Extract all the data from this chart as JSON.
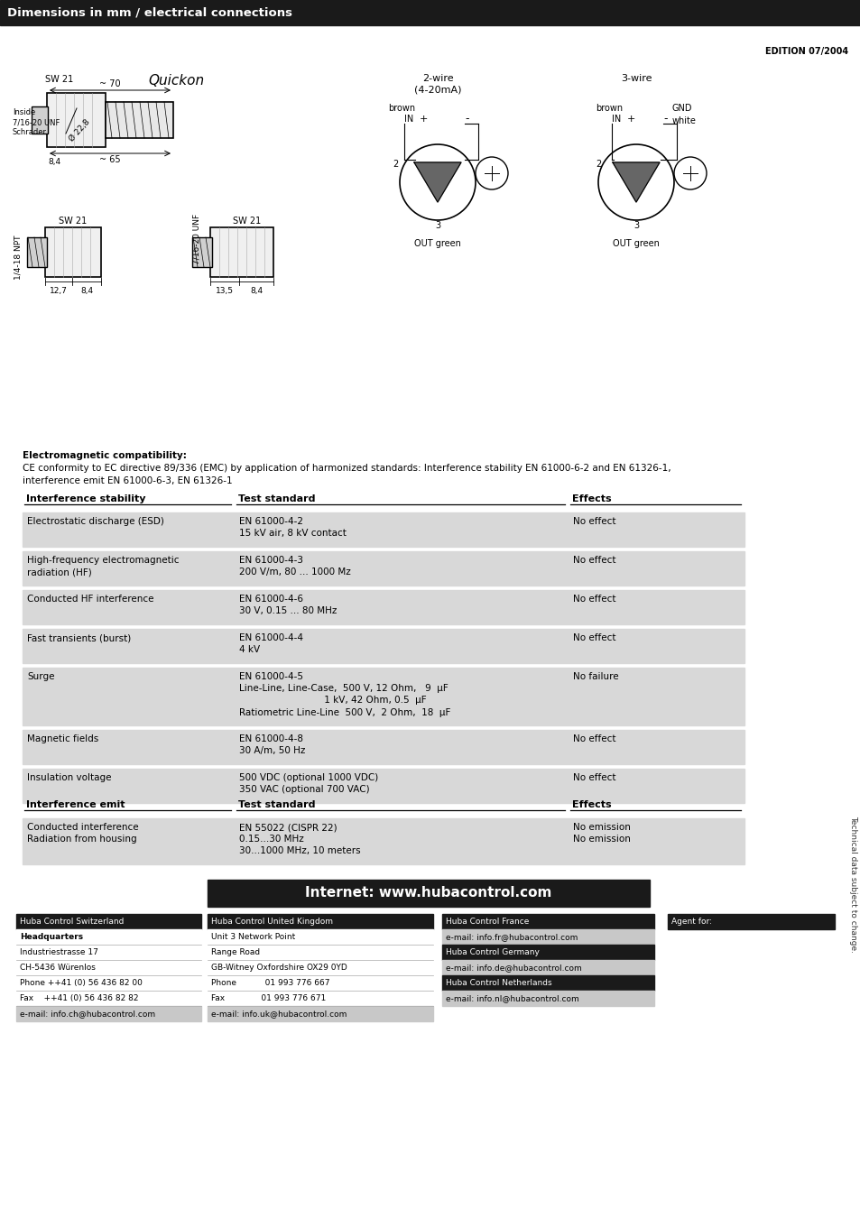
{
  "header_title": "Dimensions in mm / electrical connections",
  "header_bg": "#1a1a1a",
  "header_text_color": "#ffffff",
  "edition_text": "EDITION 07/2004",
  "bg_color": "#ffffff",
  "emc_intro_line1": "Electromagnetic compatibility:",
  "emc_intro_line2": "CE conformity to EC directive 89/336 (EMC) by application of harmonized standards: Interference stability EN 61000-6-2 and EN 61326-1,",
  "emc_intro_line3": "interference emit EN 61000-6-3, EN 61326-1",
  "table_headers": [
    "Interference stability",
    "Test standard",
    "Effects"
  ],
  "table_rows": [
    [
      "Electrostatic discharge (ESD)",
      "EN 61000-4-2\n15 kV air, 8 kV contact",
      "No effect"
    ],
    [
      "High-frequency electromagnetic\nradiation (HF)",
      "EN 61000-4-3\n200 V/m, 80 ... 1000 Mz",
      "No effect"
    ],
    [
      "Conducted HF interference",
      "EN 61000-4-6\n30 V, 0.15 ... 80 MHz",
      "No effect"
    ],
    [
      "Fast transients (burst)",
      "EN 61000-4-4\n4 kV",
      "No effect"
    ],
    [
      "Surge",
      "EN 61000-4-5\nLine-Line, Line-Case,  500 V, 12 Ohm,   9  μF\n                             1 kV, 42 Ohm, 0.5  μF\nRatiometric Line-Line  500 V,  2 Ohm,  18  μF",
      "No failure"
    ],
    [
      "Magnetic fields",
      "EN 61000-4-8\n30 A/m, 50 Hz",
      "No effect"
    ],
    [
      "Insulation voltage",
      "500 VDC (optional 1000 VDC)\n350 VAC (optional 700 VAC)",
      "No effect"
    ]
  ],
  "table_rows2_headers": [
    "Interference emit",
    "Test standard",
    "Effects"
  ],
  "table_rows2": [
    [
      "Conducted interference\nRadiation from housing",
      "EN 55022 (CISPR 22)\n0.15...30 MHz\n30...1000 MHz, 10 meters",
      "No emission\nNo emission"
    ]
  ],
  "table_row_bg_gray": "#d8d8d8",
  "internet_text": "Internet: www.hubacontrol.com",
  "internet_bg": "#1a1a1a",
  "internet_text_color": "#ffffff",
  "col1_boxes": [
    {
      "label": "Huba Control Switzerland",
      "bg": "#1a1a1a",
      "color": "#ffffff",
      "bold": false
    },
    {
      "label": "Headquarters",
      "bg": "#ffffff",
      "color": "#000000",
      "bold": true
    },
    {
      "label": "Industriestrasse 17",
      "bg": "#ffffff",
      "color": "#000000",
      "bold": false
    },
    {
      "label": "CH-5436 Würenlos",
      "bg": "#ffffff",
      "color": "#000000",
      "bold": false
    },
    {
      "label": "Phone ++41 (0) 56 436 82 00",
      "bg": "#ffffff",
      "color": "#000000",
      "bold": false
    },
    {
      "label": "Fax    ++41 (0) 56 436 82 82",
      "bg": "#ffffff",
      "color": "#000000",
      "bold": false
    },
    {
      "label": "e-mail: info.ch@hubacontrol.com",
      "bg": "#c8c8c8",
      "color": "#000000",
      "bold": false
    }
  ],
  "col2_boxes": [
    {
      "label": "Huba Control United Kingdom",
      "bg": "#1a1a1a",
      "color": "#ffffff",
      "bold": false
    },
    {
      "label": "Unit 3 Network Point",
      "bg": "#ffffff",
      "color": "#000000",
      "bold": false
    },
    {
      "label": "Range Road",
      "bg": "#ffffff",
      "color": "#000000",
      "bold": false
    },
    {
      "label": "GB-Witney Oxfordshire OX29 0YD",
      "bg": "#ffffff",
      "color": "#000000",
      "bold": false
    },
    {
      "label": "Phone           01 993 776 667",
      "bg": "#ffffff",
      "color": "#000000",
      "bold": false
    },
    {
      "label": "Fax              01 993 776 671",
      "bg": "#ffffff",
      "color": "#000000",
      "bold": false
    },
    {
      "label": "e-mail: info.uk@hubacontrol.com",
      "bg": "#c8c8c8",
      "color": "#000000",
      "bold": false
    }
  ],
  "col3_boxes": [
    {
      "label": "Huba Control France",
      "bg": "#1a1a1a",
      "color": "#ffffff",
      "bold": false
    },
    {
      "label": "e-mail: info.fr@hubacontrol.com",
      "bg": "#c8c8c8",
      "color": "#000000",
      "bold": false
    },
    {
      "label": "Huba Control Germany",
      "bg": "#1a1a1a",
      "color": "#ffffff",
      "bold": false
    },
    {
      "label": "e-mail: info.de@hubacontrol.com",
      "bg": "#c8c8c8",
      "color": "#000000",
      "bold": false
    },
    {
      "label": "Huba Control Netherlands",
      "bg": "#1a1a1a",
      "color": "#ffffff",
      "bold": false
    },
    {
      "label": "e-mail: info.nl@hubacontrol.com",
      "bg": "#c8c8c8",
      "color": "#000000",
      "bold": false
    }
  ],
  "col4_boxes": [
    {
      "label": "Agent for:",
      "bg": "#1a1a1a",
      "color": "#ffffff",
      "bold": false
    }
  ],
  "side_text": "Technical data subject to change.",
  "quickon_label": "Quickon",
  "sw21_label": "SW 21",
  "inside_label": "Inside\n7/16-20 UNF\nSchrader",
  "dia_label": "Ø 22,8",
  "dim_70": "~ 70",
  "dim_65": "~ 65",
  "dim_84": "8,4",
  "wire2_title": "2-wire\n(4-20mA)",
  "wire2_brown": "brown",
  "wire2_in": "IN",
  "wire2_out": "OUT green",
  "wire3_title": "3-wire",
  "wire3_brown": "brown",
  "wire3_in": "IN",
  "wire3_gnd": "GND",
  "wire3_white": "white",
  "wire3_out": "OUT green",
  "sw21_npt": "SW 21",
  "sw21_unf": "SW 21",
  "label_npt": "1/4-18 NPT",
  "label_unf": "7/16-20 UNF",
  "dim_127": "12,7",
  "dim_84b": "8,4",
  "dim_135": "13,5",
  "dim_84c": "8,4"
}
